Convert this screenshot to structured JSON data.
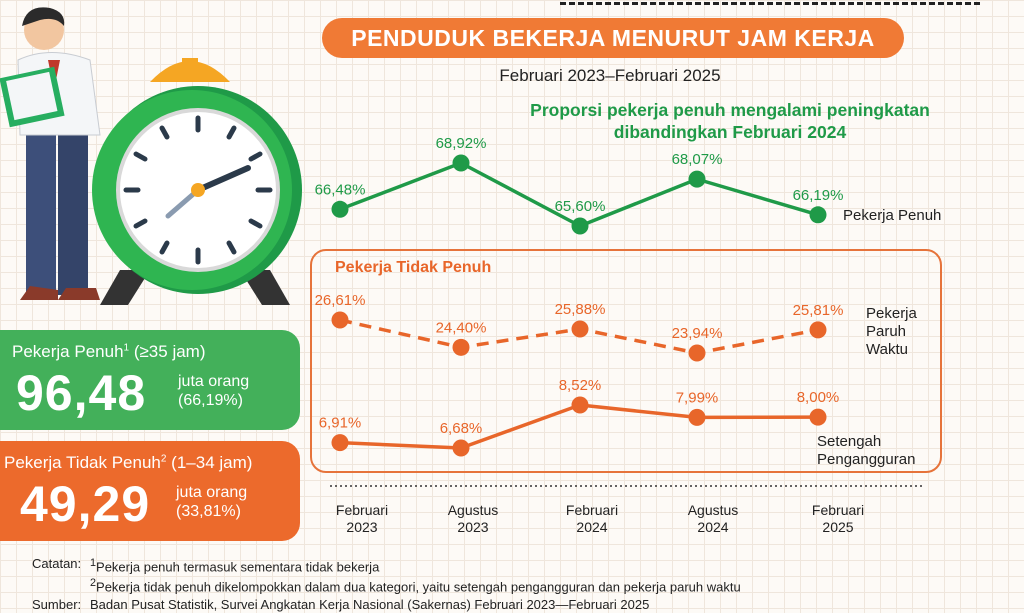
{
  "title": "PENDUDUK BEKERJA MENURUT JAM KERJA",
  "subtitle": "Februari 2023–Februari 2025",
  "headline_line1": "Proporsi pekerja penuh mengalami peningkatan",
  "headline_line2": "dibandingkan Februari 2024",
  "panel_title": "Pekerja Tidak Penuh",
  "stats": {
    "full": {
      "label": "Pekerja Penuh",
      "sup": "1",
      "range": " (≥35  jam)",
      "value": "96,48",
      "unit1": "juta orang",
      "unit2": "(66,19%)"
    },
    "part": {
      "label": "Pekerja Tidak Penuh",
      "sup": "2",
      "range": " (1–34 jam)",
      "value": "49,29",
      "unit1": "juta orang",
      "unit2": "(33,81%)"
    }
  },
  "notes": {
    "catatan_key": "Catatan:",
    "note1_sup": "1",
    "note1": "Pekerja penuh termasuk sementara tidak bekerja",
    "note2_sup": "2",
    "note2": "Pekerja tidak penuh dikelompokkan dalam dua kategori, yaitu setengah pengangguran dan pekerja paruh waktu",
    "sumber_key": "Sumber:",
    "sumber": "Badan Pusat Statistik, Survei Angkatan Kerja Nasional (Sakernas) Februari 2023—Februari 2025"
  },
  "colors": {
    "green": "#1f9a48",
    "orange": "#e8662a",
    "banner": "#f07a35"
  },
  "chart_data": {
    "type": "line",
    "categories": [
      [
        "Februari",
        "2023"
      ],
      [
        "Agustus",
        "2023"
      ],
      [
        "Februari",
        "2024"
      ],
      [
        "Agustus",
        "2024"
      ],
      [
        "Februari",
        "2025"
      ]
    ],
    "unit": "%",
    "series": [
      {
        "name": "Pekerja Penuh",
        "label_lines": [
          "Pekerja Penuh"
        ],
        "values": [
          66.48,
          68.92,
          65.6,
          68.07,
          66.19
        ],
        "labels": [
          "66,48%",
          "68,92%",
          "65,60%",
          "68,07%",
          "66,19%"
        ],
        "color": "#1f9a48",
        "style": "solid"
      },
      {
        "name": "Pekerja Paruh Waktu",
        "label_lines": [
          "Pekerja",
          "Paruh",
          "Waktu"
        ],
        "values": [
          26.61,
          24.4,
          25.88,
          23.94,
          25.81
        ],
        "labels": [
          "26,61%",
          "24,40%",
          "25,88%",
          "23,94%",
          "25,81%"
        ],
        "color": "#e8662a",
        "style": "dashed"
      },
      {
        "name": "Setengah Pengangguran",
        "label_lines": [
          "Setengah",
          "Pengangguran"
        ],
        "values": [
          6.91,
          6.68,
          8.52,
          7.99,
          8.0
        ],
        "labels": [
          "6,91%",
          "6,68%",
          "8,52%",
          "7,99%",
          "8,00%"
        ],
        "color": "#e8662a",
        "style": "solid"
      }
    ]
  }
}
